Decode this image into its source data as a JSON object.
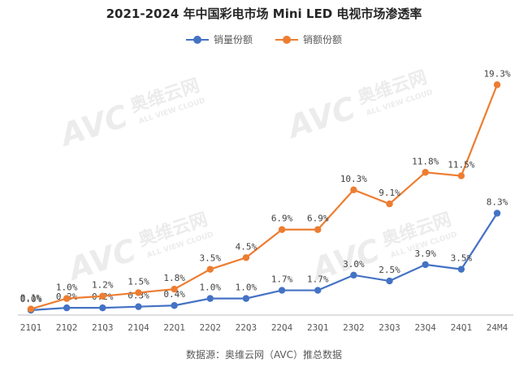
{
  "chart_data": {
    "type": "line",
    "title": "2021-2024 年中国彩电市场 Mini LED 电视市场渗透率",
    "categories": [
      "21Q1",
      "21Q2",
      "21Q3",
      "21Q4",
      "22Q1",
      "22Q2",
      "22Q3",
      "22Q4",
      "23Q1",
      "23Q2",
      "23Q3",
      "23Q4",
      "24Q1",
      "24M4"
    ],
    "series": [
      {
        "name": "销量份额",
        "color": "#4472C4",
        "values": [
          0.0,
          0.2,
          0.2,
          0.3,
          0.4,
          1.0,
          1.0,
          1.7,
          1.7,
          3.0,
          2.5,
          3.9,
          3.5,
          8.3
        ],
        "labels": [
          "0.0%",
          "0.2%",
          "0.2%",
          "0.3%",
          "0.4%",
          "1.0%",
          "1.0%",
          "1.7%",
          "1.7%",
          "3.0%",
          "2.5%",
          "3.9%",
          "3.5%",
          "8.3%"
        ]
      },
      {
        "name": "销额份额",
        "color": "#ED7D31",
        "values": [
          0.1,
          1.0,
          1.2,
          1.5,
          1.8,
          3.5,
          4.5,
          6.9,
          6.9,
          10.3,
          9.1,
          11.8,
          11.5,
          19.3
        ],
        "labels": [
          "0.1%",
          "1.0%",
          "1.2%",
          "1.5%",
          "1.8%",
          "3.5%",
          "4.5%",
          "6.9%",
          "6.9%",
          "10.3%",
          "9.1%",
          "11.8%",
          "11.5%",
          "19.3%"
        ]
      }
    ],
    "ylim": [
      0,
      20
    ],
    "grid": false,
    "legend_position": "top-center"
  },
  "watermark": {
    "logo": "AVC",
    "brand": "奥维云网",
    "tagline": "ALL VIEW CLOUD"
  },
  "footer": {
    "source": "数据源：奥维云网（AVC）推总数据"
  }
}
